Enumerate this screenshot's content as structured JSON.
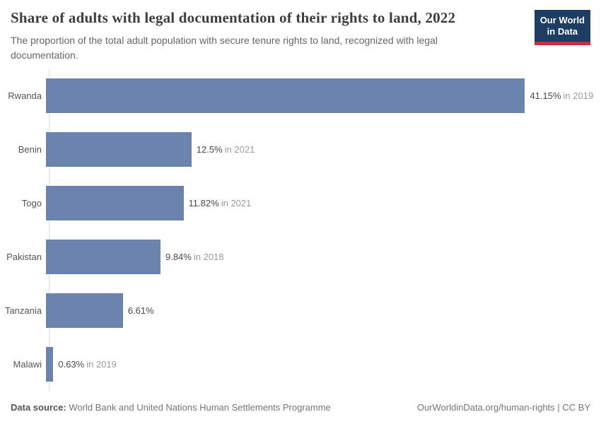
{
  "header": {
    "title": "Share of adults with legal documentation of their rights to land, 2022",
    "subtitle": "The proportion of the total adult population with secure tenure rights to land, recognized with legal documentation.",
    "logo": {
      "line1": "Our World",
      "line2": "in Data",
      "bg_color": "#1d3d63",
      "accent_color": "#c5303e"
    }
  },
  "chart_data": {
    "type": "bar",
    "orientation": "horizontal",
    "title": "Share of adults with legal documentation of their rights to land, 2022",
    "categories": [
      "Rwanda",
      "Benin",
      "Togo",
      "Pakistan",
      "Tanzania",
      "Malawi"
    ],
    "values": [
      41.15,
      12.5,
      11.82,
      9.84,
      6.61,
      0.63
    ],
    "value_labels": [
      "41.15%",
      "12.5%",
      "11.82%",
      "9.84%",
      "6.61%",
      "0.63%"
    ],
    "year_labels": [
      "in 2019",
      "in 2021",
      "in 2021",
      "in 2018",
      "",
      "in 2019"
    ],
    "xlim": [
      0,
      41.15
    ],
    "xlabel": "",
    "ylabel": "",
    "grid": false,
    "legend": false,
    "bar_color": "#6c84ad",
    "axis_color": "#dedede"
  },
  "footer": {
    "source_label": "Data source:",
    "source_text": " World Bank and United Nations Human Settlements Programme",
    "credit": "OurWorldinData.org/human-rights | CC BY"
  }
}
